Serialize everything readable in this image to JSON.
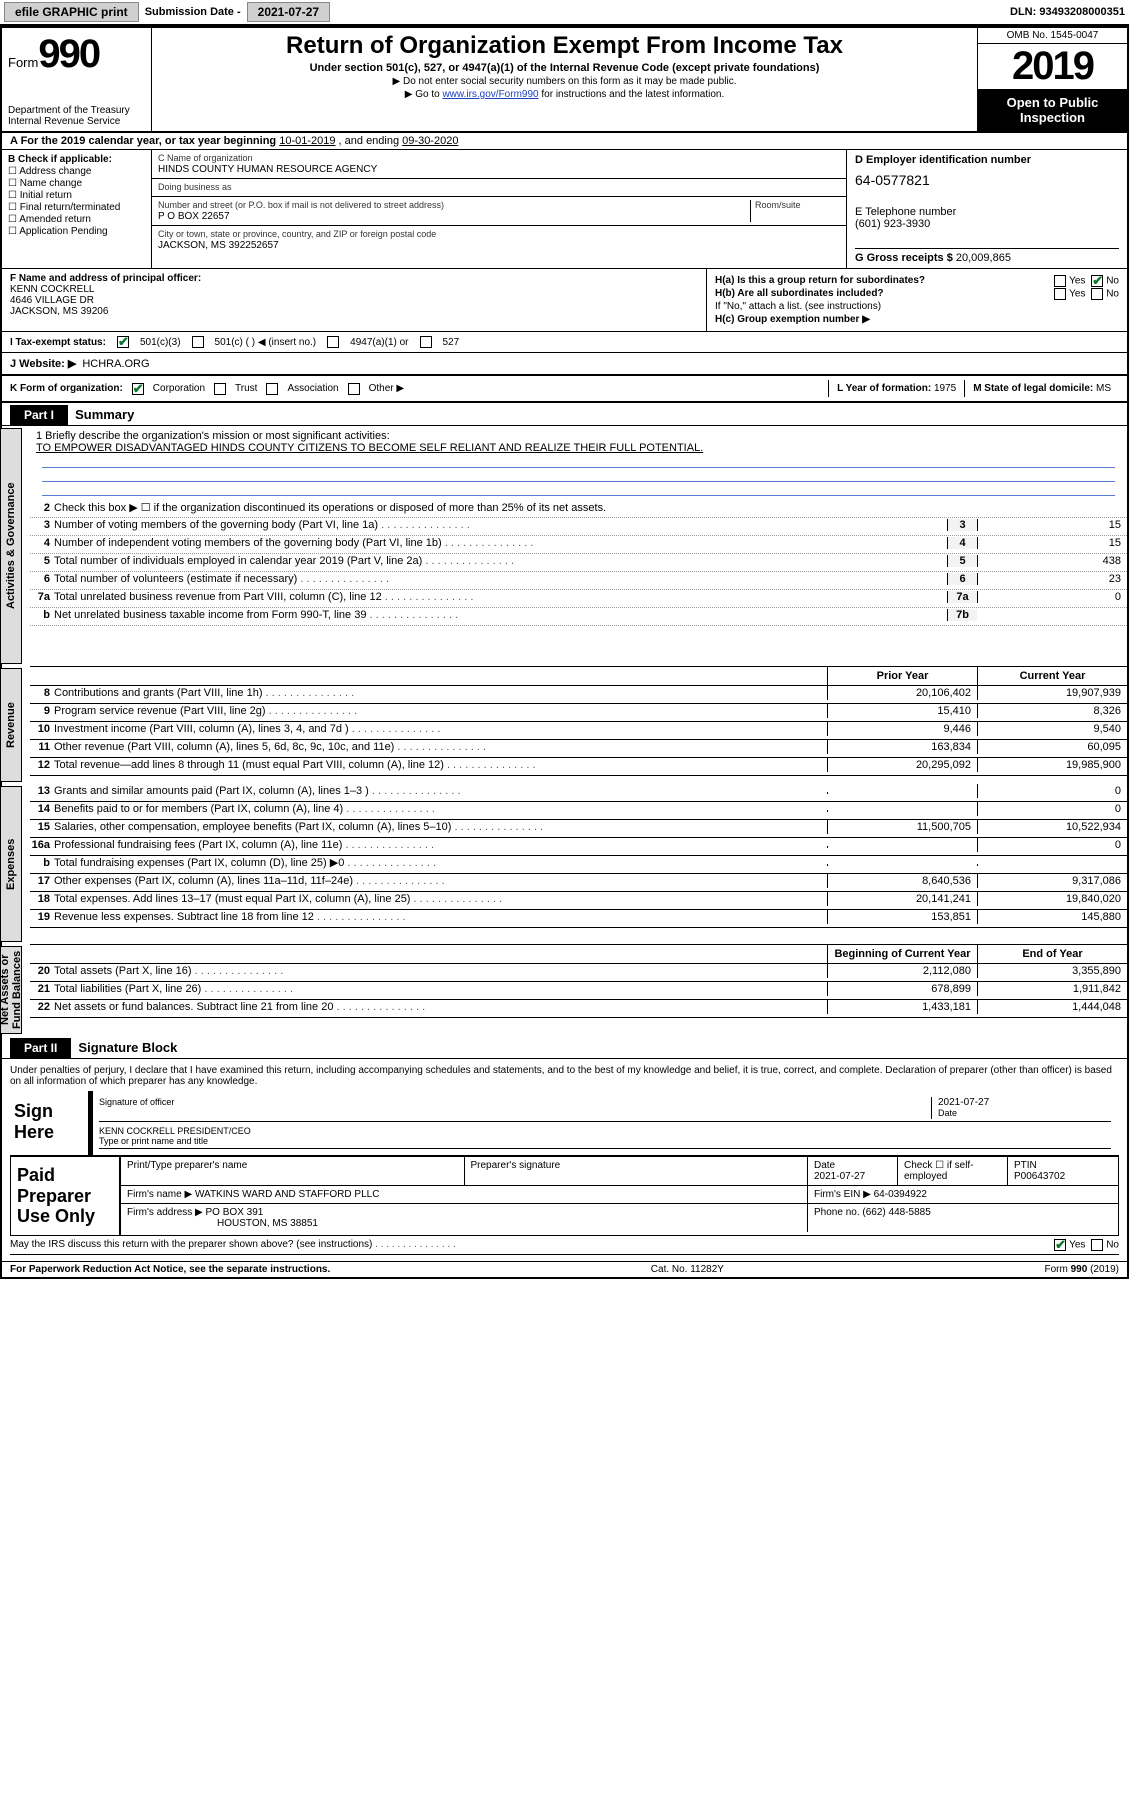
{
  "topbar": {
    "efile": "efile GRAPHIC print",
    "subdate_lbl": "Submission Date -",
    "subdate": "2021-07-27",
    "dln_lbl": "DLN:",
    "dln": "93493208000351"
  },
  "header": {
    "form_word": "Form",
    "form_num": "990",
    "title": "Return of Organization Exempt From Income Tax",
    "subtitle": "Under section 501(c), 527, or 4947(a)(1) of the Internal Revenue Code (except private foundations)",
    "note1": "▶ Do not enter social security numbers on this form as it may be made public.",
    "note2_pre": "▶ Go to ",
    "note2_link": "www.irs.gov/Form990",
    "note2_post": " for instructions and the latest information.",
    "omb": "OMB No. 1545-0047",
    "year": "2019",
    "open": "Open to Public Inspection",
    "dept": "Department of the Treasury\nInternal Revenue Service"
  },
  "period": {
    "text_a": "A For the 2019 calendar year, or tax year beginning ",
    "begin": "10-01-2019",
    "mid": " , and ending ",
    "end": "09-30-2020"
  },
  "boxB": {
    "title": "B Check if applicable:",
    "items": [
      "Address change",
      "Name change",
      "Initial return",
      "Final return/terminated",
      "Amended return",
      "Application Pending"
    ]
  },
  "boxC": {
    "name_lbl": "C Name of organization",
    "name": "HINDS COUNTY HUMAN RESOURCE AGENCY",
    "dba_lbl": "Doing business as",
    "street_lbl": "Number and street (or P.O. box if mail is not delivered to street address)",
    "room_lbl": "Room/suite",
    "street": "P O BOX 22657",
    "city_lbl": "City or town, state or province, country, and ZIP or foreign postal code",
    "city": "JACKSON, MS  392252657"
  },
  "boxD": {
    "lbl": "D Employer identification number",
    "val": "64-0577821"
  },
  "boxE": {
    "lbl": "E Telephone number",
    "val": "(601) 923-3930"
  },
  "boxG": {
    "lbl": "G Gross receipts $",
    "val": "20,009,865"
  },
  "boxF": {
    "lbl": "F  Name and address of principal officer:",
    "name": "KENN COCKRELL",
    "addr1": "4646 VILLAGE DR",
    "addr2": "JACKSON, MS  39206"
  },
  "boxH": {
    "a": "H(a)  Is this a group return for subordinates?",
    "a_yes": "Yes",
    "a_no": "No",
    "b": "H(b)  Are all subordinates included?",
    "b_note": "If \"No,\" attach a list. (see instructions)",
    "c": "H(c)  Group exemption number ▶"
  },
  "boxI": {
    "lbl": "I   Tax-exempt status:",
    "o1": "501(c)(3)",
    "o2": "501(c) (   ) ◀ (insert no.)",
    "o3": "4947(a)(1) or",
    "o4": "527"
  },
  "boxJ": {
    "lbl": "J   Website: ▶",
    "val": "HCHRA.ORG"
  },
  "boxK": {
    "lbl": "K Form of organization:",
    "o1": "Corporation",
    "o2": "Trust",
    "o3": "Association",
    "o4": "Other ▶"
  },
  "boxL": {
    "lbl": "L Year of formation:",
    "val": "1975"
  },
  "boxM": {
    "lbl": "M State of legal domicile:",
    "val": "MS"
  },
  "part1": {
    "tag": "Part I",
    "title": "Summary"
  },
  "mission": {
    "q": "1   Briefly describe the organization's mission or most significant activities:",
    "text": "TO EMPOWER DISADVANTAGED HINDS COUNTY CITIZENS TO BECOME SELF RELIANT AND REALIZE THEIR FULL POTENTIAL."
  },
  "gov_lines": {
    "l2": "Check this box ▶ ☐  if the organization discontinued its operations or disposed of more than 25% of its net assets.",
    "l3": {
      "d": "Number of voting members of the governing body (Part VI, line 1a)",
      "b": "3",
      "v": "15"
    },
    "l4": {
      "d": "Number of independent voting members of the governing body (Part VI, line 1b)",
      "b": "4",
      "v": "15"
    },
    "l5": {
      "d": "Total number of individuals employed in calendar year 2019 (Part V, line 2a)",
      "b": "5",
      "v": "438"
    },
    "l6": {
      "d": "Total number of volunteers (estimate if necessary)",
      "b": "6",
      "v": "23"
    },
    "l7a": {
      "d": "Total unrelated business revenue from Part VIII, column (C), line 12",
      "b": "7a",
      "v": "0"
    },
    "l7b": {
      "d": "Net unrelated business taxable income from Form 990-T, line 39",
      "b": "7b",
      "v": ""
    }
  },
  "rev_head": {
    "prior": "Prior Year",
    "curr": "Current Year"
  },
  "revenue": [
    {
      "n": "8",
      "d": "Contributions and grants (Part VIII, line 1h)",
      "p": "20,106,402",
      "c": "19,907,939"
    },
    {
      "n": "9",
      "d": "Program service revenue (Part VIII, line 2g)",
      "p": "15,410",
      "c": "8,326"
    },
    {
      "n": "10",
      "d": "Investment income (Part VIII, column (A), lines 3, 4, and 7d )",
      "p": "9,446",
      "c": "9,540"
    },
    {
      "n": "11",
      "d": "Other revenue (Part VIII, column (A), lines 5, 6d, 8c, 9c, 10c, and 11e)",
      "p": "163,834",
      "c": "60,095"
    },
    {
      "n": "12",
      "d": "Total revenue—add lines 8 through 11 (must equal Part VIII, column (A), line 12)",
      "p": "20,295,092",
      "c": "19,985,900"
    }
  ],
  "expenses": [
    {
      "n": "13",
      "d": "Grants and similar amounts paid (Part IX, column (A), lines 1–3 )",
      "p": "",
      "c": "0"
    },
    {
      "n": "14",
      "d": "Benefits paid to or for members (Part IX, column (A), line 4)",
      "p": "",
      "c": "0"
    },
    {
      "n": "15",
      "d": "Salaries, other compensation, employee benefits (Part IX, column (A), lines 5–10)",
      "p": "11,500,705",
      "c": "10,522,934"
    },
    {
      "n": "16a",
      "d": "Professional fundraising fees (Part IX, column (A), line 11e)",
      "p": "",
      "c": "0"
    },
    {
      "n": "b",
      "d": "Total fundraising expenses (Part IX, column (D), line 25) ▶0",
      "p": "",
      "c": ""
    },
    {
      "n": "17",
      "d": "Other expenses (Part IX, column (A), lines 11a–11d, 11f–24e)",
      "p": "8,640,536",
      "c": "9,317,086"
    },
    {
      "n": "18",
      "d": "Total expenses. Add lines 13–17 (must equal Part IX, column (A), line 25)",
      "p": "20,141,241",
      "c": "19,840,020"
    },
    {
      "n": "19",
      "d": "Revenue less expenses. Subtract line 18 from line 12",
      "p": "153,851",
      "c": "145,880"
    }
  ],
  "net_head": {
    "beg": "Beginning of Current Year",
    "end": "End of Year"
  },
  "net": [
    {
      "n": "20",
      "d": "Total assets (Part X, line 16)",
      "p": "2,112,080",
      "c": "3,355,890"
    },
    {
      "n": "21",
      "d": "Total liabilities (Part X, line 26)",
      "p": "678,899",
      "c": "1,911,842"
    },
    {
      "n": "22",
      "d": "Net assets or fund balances. Subtract line 21 from line 20",
      "p": "1,433,181",
      "c": "1,444,048"
    }
  ],
  "part2": {
    "tag": "Part II",
    "title": "Signature Block"
  },
  "sig": {
    "decl": "Under penalties of perjury, I declare that I have examined this return, including accompanying schedules and statements, and to the best of my knowledge and belief, it is true, correct, and complete. Declaration of preparer (other than officer) is based on all information of which preparer has any knowledge.",
    "here": "Sign Here",
    "officer_lbl": "Signature of officer",
    "date_lbl": "Date",
    "date": "2021-07-27",
    "name": "KENN COCKRELL PRESIDENT/CEO",
    "name_lbl": "Type or print name and title"
  },
  "paid": {
    "lbl": "Paid Preparer Use Only",
    "h1": "Print/Type preparer's name",
    "h2": "Preparer's signature",
    "h3": "Date",
    "h3v": "2021-07-27",
    "h4": "Check ☐  if self-employed",
    "h5": "PTIN",
    "ptin": "P00643702",
    "firm_lbl": "Firm's name     ▶",
    "firm": "WATKINS WARD AND STAFFORD PLLC",
    "ein_lbl": "Firm's EIN ▶",
    "ein": "64-0394922",
    "addr_lbl": "Firm's address ▶",
    "addr1": "PO BOX 391",
    "addr2": "HOUSTON, MS  38851",
    "phone_lbl": "Phone no.",
    "phone": "(662) 448-5885",
    "discuss": "May the IRS discuss this return with the preparer shown above? (see instructions)",
    "yes": "Yes",
    "no": "No"
  },
  "footer": {
    "pra": "For Paperwork Reduction Act Notice, see the separate instructions.",
    "cat": "Cat. No. 11282Y",
    "form": "Form 990 (2019)"
  },
  "sidetabs": {
    "gov": "Activities & Governance",
    "rev": "Revenue",
    "exp": "Expenses",
    "net": "Net Assets or Fund Balances"
  },
  "colors": {
    "check_green": "#0a7a2a",
    "link_blue": "#1a3fbf",
    "rule_blue": "#5a7bd4",
    "tab_bg": "#dddddd",
    "numcell_bg": "#f3f3f3"
  }
}
